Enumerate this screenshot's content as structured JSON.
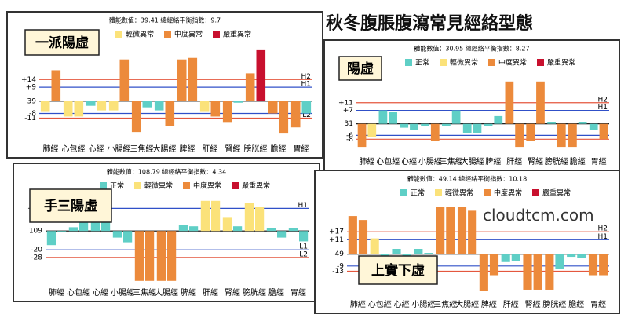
{
  "title": "秋冬腹脹腹瀉常見經絡型態",
  "watermark": "cloudtcm.com",
  "chart_data": [
    {
      "type": "bar",
      "header": "體能數值：39.41 總經絡平衡指數：9.7",
      "label": "一派陽虛",
      "legend": [
        {
          "label": "輕微異常",
          "color": "#fbe27a"
        },
        {
          "label": "中度異常",
          "color": "#ec8a3b"
        },
        {
          "label": "嚴重異常",
          "color": "#c8102e"
        }
      ],
      "categories": [
        "肺經",
        "心包經",
        "心經",
        "小腸經",
        "三焦經",
        "大腸經",
        "脾經",
        "肝經",
        "腎經",
        "膀胱經",
        "膽經",
        "胃經"
      ],
      "series": [
        {
          "values": [
            -7,
            -10,
            -3,
            -6,
            -20,
            -6,
            27,
            -7,
            -14,
            18,
            -8,
            -17
          ],
          "colors": [
            "#fbe27a",
            "#fbe27a",
            "#5fcfc6",
            "#fbe27a",
            "#ec8a3b",
            "#5fcfc6",
            "#ec8a3b",
            "#fbe27a",
            "#ec8a3b",
            "#ec8a3b",
            "#ec8a3b",
            "#ec8a3b"
          ]
        },
        {
          "values": [
            20,
            -10,
            -6,
            27,
            -4,
            -16,
            28,
            -10,
            -1,
            33,
            -21,
            -8
          ],
          "colors": [
            "#ec8a3b",
            "#fbe27a",
            "#fbe27a",
            "#ec8a3b",
            "#5fcfc6",
            "#ec8a3b",
            "#ec8a3b",
            "#ec8a3b",
            "#5fcfc6",
            "#c8102e",
            "#ec8a3b",
            "#5fcfc6"
          ]
        }
      ],
      "ylim": [
        -24,
        36
      ],
      "yticks": [
        {
          "value": 14,
          "label": "+14",
          "line_label": "H2",
          "color": "#e4573e"
        },
        {
          "value": 9,
          "label": "+9",
          "line_label": "H1",
          "color": "#3050c8"
        },
        {
          "value": 0,
          "label": "39",
          "color": "#000000"
        },
        {
          "value": -8,
          "label": "-8",
          "line_label": "L1",
          "color": "#3050c8"
        },
        {
          "value": -11,
          "label": "-11",
          "line_label": "L2",
          "color": "#e4573e"
        }
      ]
    },
    {
      "type": "bar",
      "header": "體能數值：30.95 總經絡平衡指數：8.27",
      "label": "陽虛",
      "legend": [
        {
          "label": "正常",
          "color": "#5fcfc6"
        },
        {
          "label": "輕微異常",
          "color": "#fbe27a"
        },
        {
          "label": "中度異常",
          "color": "#ec8a3b"
        },
        {
          "label": "嚴重異常",
          "color": "#c8102e"
        }
      ],
      "categories": [
        "肺經",
        "心包經",
        "心經",
        "小腸經",
        "三焦經",
        "大腸經",
        "脾經",
        "肝經",
        "腎經",
        "膀胱經",
        "膽經",
        "胃經"
      ],
      "series": [
        {
          "values": [
            -12,
            7,
            -2,
            -1,
            -1,
            -5,
            -1,
            22,
            -9,
            1,
            -12,
            -3
          ],
          "colors": [
            "#ec8a3b",
            "#5fcfc6",
            "#5fcfc6",
            "#5fcfc6",
            "#5fcfc6",
            "#5fcfc6",
            "#5fcfc6",
            "#ec8a3b",
            "#ec8a3b",
            "#5fcfc6",
            "#ec8a3b",
            "#5fcfc6"
          ]
        },
        {
          "values": [
            -7,
            6,
            -3,
            -9,
            7,
            -5,
            4,
            -12,
            22,
            -12,
            1,
            -8
          ],
          "colors": [
            "#fbe27a",
            "#5fcfc6",
            "#5fcfc6",
            "#ec8a3b",
            "#5fcfc6",
            "#5fcfc6",
            "#5fcfc6",
            "#ec8a3b",
            "#ec8a3b",
            "#ec8a3b",
            "#5fcfc6",
            "#ec8a3b"
          ]
        }
      ],
      "ylim": [
        -14,
        26
      ],
      "yticks": [
        {
          "value": 11,
          "label": "+11",
          "line_label": "H2",
          "color": "#e4573e"
        },
        {
          "value": 7,
          "label": "+7",
          "line_label": "H1",
          "color": "#3050c8"
        },
        {
          "value": 0,
          "label": "31",
          "color": "#000000"
        },
        {
          "value": -6,
          "label": "-6",
          "line_label": "L1",
          "color": "#3050c8"
        },
        {
          "value": -8,
          "label": "-8",
          "line_label": "L2",
          "color": "#e4573e"
        }
      ]
    },
    {
      "type": "bar",
      "header": "體能數值：108.79 總經絡平衡指數：4.34",
      "label": "手三陽虛",
      "legend": [
        {
          "label": "正常",
          "color": "#5fcfc6"
        },
        {
          "label": "輕微異常",
          "color": "#fbe27a"
        },
        {
          "label": "中度異常",
          "color": "#ec8a3b"
        },
        {
          "label": "嚴重異常",
          "color": "#c8102e"
        }
      ],
      "categories": [
        "肺經",
        "心包經",
        "心經",
        "小腸經",
        "三焦經",
        "大腸經",
        "脾經",
        "肝經",
        "腎經",
        "膀胱經",
        "膽經",
        "胃經"
      ],
      "series": [
        {
          "values": [
            -15,
            4,
            9,
            -7,
            -53,
            -53,
            6,
            32,
            14,
            30,
            3,
            3
          ],
          "colors": [
            "#5fcfc6",
            "#5fcfc6",
            "#5fcfc6",
            "#5fcfc6",
            "#ec8a3b",
            "#ec8a3b",
            "#5fcfc6",
            "#fbe27a",
            "#fbe27a",
            "#fbe27a",
            "#5fcfc6",
            "#5fcfc6"
          ]
        },
        {
          "values": [
            -1,
            9,
            9,
            -12,
            -53,
            -53,
            5,
            32,
            5,
            26,
            -7,
            -11
          ],
          "colors": [
            "#5fcfc6",
            "#5fcfc6",
            "#5fcfc6",
            "#5fcfc6",
            "#ec8a3b",
            "#ec8a3b",
            "#5fcfc6",
            "#fbe27a",
            "#5fcfc6",
            "#fbe27a",
            "#5fcfc6",
            "#5fcfc6"
          ]
        }
      ],
      "ylim": [
        -54,
        36
      ],
      "yticks": [
        {
          "value": 24,
          "label": "+24",
          "line_label": "H1",
          "color": "#3050c8"
        },
        {
          "value": 0,
          "label": "109",
          "color": "#000000"
        },
        {
          "value": -20,
          "label": "-20",
          "line_label": "L1",
          "color": "#3050c8"
        },
        {
          "value": -28,
          "label": "-28",
          "line_label": "L2",
          "color": "#e4573e"
        }
      ]
    },
    {
      "type": "bar",
      "header": "體能數值：49.14 總經絡平衡指數：10.18",
      "label": "上實下虛",
      "legend": [
        {
          "label": "正常",
          "color": "#5fcfc6"
        },
        {
          "label": "輕微異常",
          "color": "#fbe27a"
        },
        {
          "label": "中度異常",
          "color": "#ec8a3b"
        },
        {
          "label": "嚴重異常",
          "color": "#c8102e"
        }
      ],
      "categories": [
        "肺經",
        "心包經",
        "心經",
        "小腸經",
        "三焦經",
        "大腸經",
        "脾經",
        "肝經",
        "腎經",
        "膀胱經",
        "膽經",
        "胃經"
      ],
      "series": [
        {
          "values": [
            29,
            12,
            4,
            4,
            36,
            36,
            -28,
            -6,
            -27,
            -27,
            -2,
            -16
          ],
          "colors": [
            "#ec8a3b",
            "#fbe27a",
            "#5fcfc6",
            "#5fcfc6",
            "#ec8a3b",
            "#ec8a3b",
            "#ec8a3b",
            "#5fcfc6",
            "#ec8a3b",
            "#ec8a3b",
            "#5fcfc6",
            "#ec8a3b"
          ]
        },
        {
          "values": [
            26,
            -5,
            -3,
            1,
            36,
            33,
            -16,
            -5,
            -27,
            -11,
            -3,
            -16
          ],
          "colors": [
            "#ec8a3b",
            "#5fcfc6",
            "#5fcfc6",
            "#5fcfc6",
            "#ec8a3b",
            "#ec8a3b",
            "#ec8a3b",
            "#5fcfc6",
            "#ec8a3b",
            "#5fcfc6",
            "#5fcfc6",
            "#ec8a3b"
          ]
        }
      ],
      "ylim": [
        -30,
        38
      ],
      "yticks": [
        {
          "value": 17,
          "label": "+17",
          "line_label": "H2",
          "color": "#e4573e"
        },
        {
          "value": 11,
          "label": "+11",
          "line_label": "H1",
          "color": "#3050c8"
        },
        {
          "value": 0,
          "label": "49",
          "color": "#000000"
        },
        {
          "value": -9,
          "label": "-9",
          "line_label": "L1",
          "color": "#3050c8"
        },
        {
          "value": -13,
          "label": "-13",
          "line_label": "L2",
          "color": "#e4573e"
        }
      ]
    }
  ]
}
